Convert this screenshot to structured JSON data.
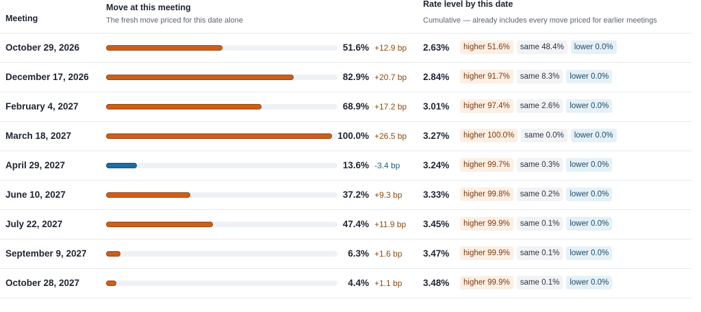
{
  "header": {
    "meeting": "Meeting",
    "move_title": "Move at this meeting",
    "move_subtitle": "The fresh move priced for this date alone",
    "rate_title": "Rate level by this date",
    "rate_subtitle": "Cumulative — already includes every move priced for earlier meetings"
  },
  "colors": {
    "up": "#cc5f1a",
    "down": "#1b6ca8",
    "up_text": "#8a4a0c",
    "down_text": "#1b5f80"
  },
  "rows": [
    {
      "meeting": "October 29, 2026",
      "move": {
        "value": 51.6,
        "label": "51.6%"
      },
      "bp": {
        "value": 12.9,
        "label": "+12.9 bp"
      },
      "rate": "2.63%",
      "higher": "higher 51.6%",
      "same": "same 48.4%",
      "lower": "lower 0.0%"
    },
    {
      "meeting": "December 17, 2026",
      "move": {
        "value": 82.9,
        "label": "82.9%"
      },
      "bp": {
        "value": 20.7,
        "label": "+20.7 bp"
      },
      "rate": "2.84%",
      "higher": "higher 91.7%",
      "same": "same 8.3%",
      "lower": "lower 0.0%"
    },
    {
      "meeting": "February 4, 2027",
      "move": {
        "value": 68.9,
        "label": "68.9%"
      },
      "bp": {
        "value": 17.2,
        "label": "+17.2 bp"
      },
      "rate": "3.01%",
      "higher": "higher 97.4%",
      "same": "same 2.6%",
      "lower": "lower 0.0%"
    },
    {
      "meeting": "March 18, 2027",
      "move": {
        "value": 100.0,
        "label": "100.0%"
      },
      "bp": {
        "value": 26.5,
        "label": "+26.5 bp"
      },
      "rate": "3.27%",
      "higher": "higher 100.0%",
      "same": "same 0.0%",
      "lower": "lower 0.0%"
    },
    {
      "meeting": "April 29, 2027",
      "move": {
        "value": 13.6,
        "label": "13.6%"
      },
      "bp": {
        "value": -3.4,
        "label": "-3.4 bp"
      },
      "rate": "3.24%",
      "higher": "higher 99.7%",
      "same": "same 0.3%",
      "lower": "lower 0.0%"
    },
    {
      "meeting": "June 10, 2027",
      "move": {
        "value": 37.2,
        "label": "37.2%"
      },
      "bp": {
        "value": 9.3,
        "label": "+9.3 bp"
      },
      "rate": "3.33%",
      "higher": "higher 99.8%",
      "same": "same 0.2%",
      "lower": "lower 0.0%"
    },
    {
      "meeting": "July 22, 2027",
      "move": {
        "value": 47.4,
        "label": "47.4%"
      },
      "bp": {
        "value": 11.9,
        "label": "+11.9 bp"
      },
      "rate": "3.45%",
      "higher": "higher 99.9%",
      "same": "same 0.1%",
      "lower": "lower 0.0%"
    },
    {
      "meeting": "September 9, 2027",
      "move": {
        "value": 6.3,
        "label": "6.3%"
      },
      "bp": {
        "value": 1.6,
        "label": "+1.6 bp"
      },
      "rate": "3.47%",
      "higher": "higher 99.9%",
      "same": "same 0.1%",
      "lower": "lower 0.0%"
    },
    {
      "meeting": "October 28, 2027",
      "move": {
        "value": 4.4,
        "label": "4.4%"
      },
      "bp": {
        "value": 1.1,
        "label": "+1.1 bp"
      },
      "rate": "3.48%",
      "higher": "higher 99.9%",
      "same": "same 0.1%",
      "lower": "lower 0.0%"
    }
  ]
}
